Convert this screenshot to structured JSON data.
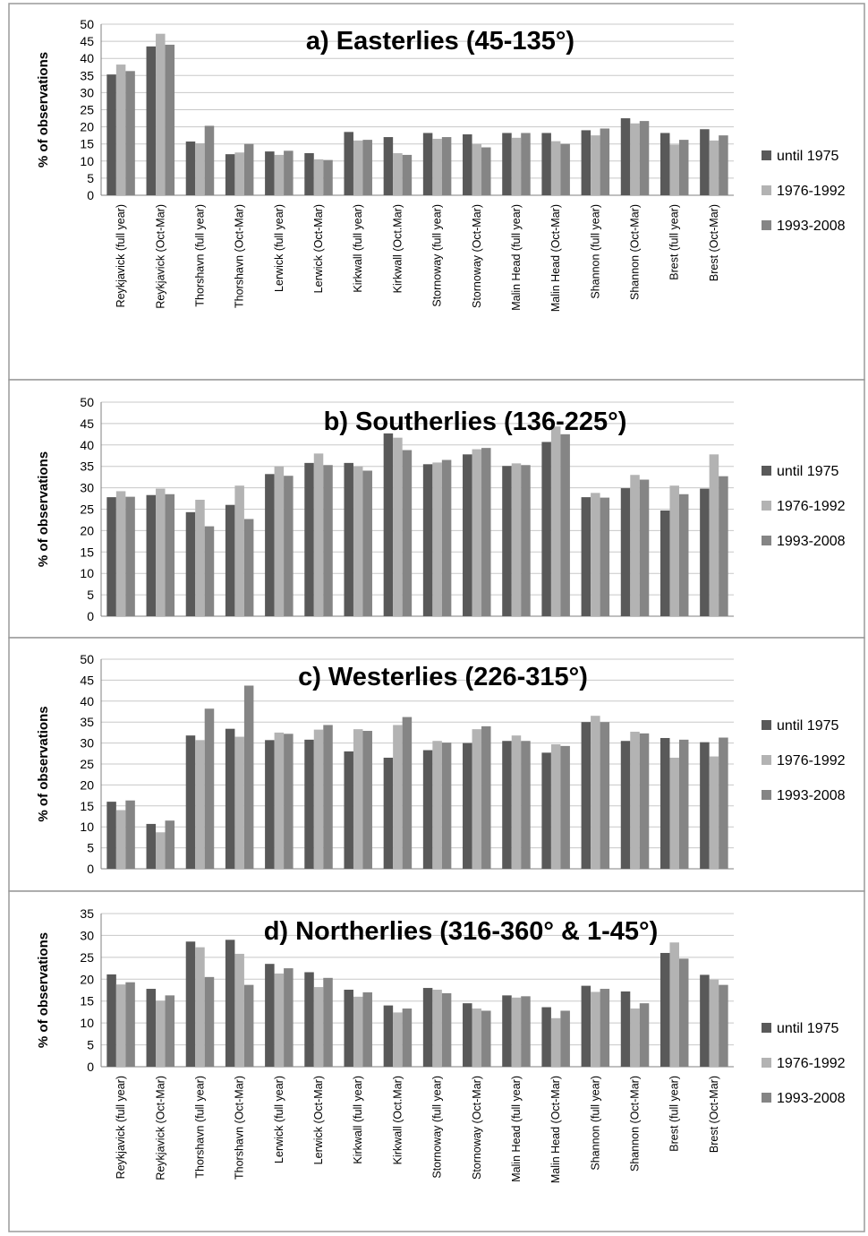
{
  "legend": {
    "entries": [
      "until 1975",
      "1976-1992",
      "1993-2008"
    ],
    "colors": [
      "#595959",
      "#b3b3b3",
      "#858585"
    ]
  },
  "chart_data": [
    {
      "type": "bar",
      "title": "a) Easterlies (45-135°)",
      "ylabel": "% of observations",
      "ylim": [
        0,
        50
      ],
      "yticks": [
        0,
        5,
        10,
        15,
        20,
        25,
        30,
        35,
        40,
        45,
        50
      ],
      "grid": true,
      "legend": "right",
      "categories": [
        "Reykjavick (full year)",
        "Reykjavick (Oct-Mar)",
        "Thorshavn (full year)",
        "Thorshavn (Oct-Mar)",
        "Lerwick (full year)",
        "Lerwick (Oct-Mar)",
        "Kirkwall (full year)",
        "Kirkwall (Oct.Mar)",
        "Stornoway (full year)",
        "Stornoway (Oct-Mar)",
        "Malin Head (full year)",
        "Malin Head (Oct-Mar)",
        "Shannon (full year)",
        "Shannon (Oct-Mar)",
        "Brest (full year)",
        "Brest (Oct-Mar)"
      ],
      "series": [
        {
          "name": "until 1975",
          "values": [
            35.3,
            43.5,
            15.7,
            12,
            12.8,
            12.3,
            18.5,
            17,
            18.2,
            17.8,
            18.2,
            18.2,
            19,
            22.5,
            18.2,
            19.3
          ]
        },
        {
          "name": "1976-1992",
          "values": [
            38.2,
            47.2,
            15.2,
            12.5,
            11.8,
            10.5,
            16,
            12.3,
            16.5,
            15,
            16.8,
            15.8,
            17.5,
            21,
            14.8,
            16
          ]
        },
        {
          "name": "1993-2008",
          "values": [
            36.3,
            44,
            20.3,
            15,
            13,
            10.3,
            16.2,
            11.8,
            17,
            14,
            18.2,
            15,
            19.5,
            21.7,
            16.2,
            17.5
          ]
        }
      ]
    },
    {
      "type": "bar",
      "title": "b) Southerlies (136-225°)",
      "ylabel": "% of observations",
      "ylim": [
        0,
        50
      ],
      "yticks": [
        0,
        5,
        10,
        15,
        20,
        25,
        30,
        35,
        40,
        45,
        50
      ],
      "grid": true,
      "legend": "right",
      "categories": [
        "Reykjavick (full year)",
        "Reykjavick (Oct-Mar)",
        "Thorshavn (full year)",
        "Thorshavn (Oct-Mar)",
        "Lerwick (full year)",
        "Lerwick (Oct-Mar)",
        "Kirkwall (full year)",
        "Kirkwall (Oct.Mar)",
        "Stornoway (full year)",
        "Stornoway (Oct-Mar)",
        "Malin Head (full year)",
        "Malin Head (Oct-Mar)",
        "Shannon (full year)",
        "Shannon (Oct-Mar)",
        "Brest (full year)",
        "Brest (Oct-Mar)"
      ],
      "series": [
        {
          "name": "until 1975",
          "values": [
            27.8,
            28.3,
            24.3,
            26,
            33.2,
            35.8,
            35.8,
            42.7,
            35.5,
            37.8,
            35.1,
            40.7,
            27.8,
            29.9,
            24.7,
            29.8
          ]
        },
        {
          "name": "1976-1992",
          "values": [
            29.2,
            29.8,
            27.2,
            30.5,
            35,
            38,
            35,
            41.7,
            35.9,
            39,
            35.7,
            44.3,
            28.8,
            33,
            30.5,
            37.8
          ]
        },
        {
          "name": "1993-2008",
          "values": [
            27.9,
            28.5,
            21,
            22.7,
            32.8,
            35.3,
            34,
            38.8,
            36.5,
            39.3,
            35.3,
            42.5,
            27.7,
            31.9,
            28.5,
            32.7
          ]
        }
      ]
    },
    {
      "type": "bar",
      "title": "c) Westerlies  (226-315°)",
      "ylabel": "% of observations",
      "ylim": [
        0,
        50
      ],
      "yticks": [
        0,
        5,
        10,
        15,
        20,
        25,
        30,
        35,
        40,
        45,
        50
      ],
      "grid": true,
      "legend": "right",
      "categories": [
        "Reykjavick (full year)",
        "Reykjavick (Oct-Mar)",
        "Thorshavn (full year)",
        "Thorshavn (Oct-Mar)",
        "Lerwick (full year)",
        "Lerwick (Oct-Mar)",
        "Kirkwall (full year)",
        "Kirkwall (Oct.Mar)",
        "Stornoway (full year)",
        "Stornoway (Oct-Mar)",
        "Malin Head (full year)",
        "Malin Head (Oct-Mar)",
        "Shannon (full year)",
        "Shannon (Oct-Mar)",
        "Brest (full year)",
        "Brest (Oct-Mar)"
      ],
      "series": [
        {
          "name": "until 1975",
          "values": [
            16,
            10.7,
            31.8,
            33.4,
            30.7,
            30.8,
            28,
            26.5,
            28.3,
            30,
            30.5,
            27.7,
            35,
            30.5,
            31.2,
            30.2
          ]
        },
        {
          "name": "1976-1992",
          "values": [
            14,
            8.7,
            30.7,
            31.5,
            32.5,
            33.2,
            33.3,
            34.3,
            30.5,
            33.3,
            31.8,
            29.7,
            36.5,
            32.7,
            26.5,
            26.8
          ]
        },
        {
          "name": "1993-2008",
          "values": [
            16.3,
            11.5,
            38.2,
            43.7,
            32.2,
            34.3,
            32.9,
            36.2,
            30.1,
            34,
            30.5,
            29.3,
            35,
            32.3,
            30.8,
            31.3
          ]
        }
      ]
    },
    {
      "type": "bar",
      "title": "d) Northerlies (316-360° & 1-45°)",
      "ylabel": "% of observations",
      "ylim": [
        0,
        35
      ],
      "yticks": [
        0,
        5,
        10,
        15,
        20,
        25,
        30,
        35
      ],
      "grid": true,
      "legend": "right",
      "categories": [
        "Reykjavick (full year)",
        "Reykjavick (Oct-Mar)",
        "Thorshavn (full year)",
        "Thorshavn (Oct-Mar)",
        "Lerwick (full year)",
        "Lerwick (Oct-Mar)",
        "Kirkwall (full year)",
        "Kirkwall (Oct.Mar)",
        "Stornoway (full year)",
        "Stornoway (Oct-Mar)",
        "Malin Head (full year)",
        "Malin Head (Oct-Mar)",
        "Shannon (full year)",
        "Shannon (Oct-Mar)",
        "Brest (full year)",
        "Brest (Oct-Mar)"
      ],
      "series": [
        {
          "name": "until 1975",
          "values": [
            21.1,
            17.8,
            28.6,
            29,
            23.5,
            21.6,
            17.6,
            14,
            18,
            14.5,
            16.3,
            13.6,
            18.5,
            17.2,
            26,
            21
          ]
        },
        {
          "name": "1976-1992",
          "values": [
            18.8,
            15.1,
            27.3,
            25.8,
            21.3,
            18.2,
            16,
            12.4,
            17.6,
            13.3,
            15.8,
            11.1,
            17.1,
            13.3,
            28.4,
            19.9
          ]
        },
        {
          "name": "1993-2008",
          "values": [
            19.3,
            16.3,
            20.5,
            18.7,
            22.5,
            20.3,
            17,
            13.3,
            16.8,
            12.8,
            16.1,
            12.8,
            17.8,
            14.5,
            24.7,
            18.7
          ]
        }
      ]
    }
  ]
}
